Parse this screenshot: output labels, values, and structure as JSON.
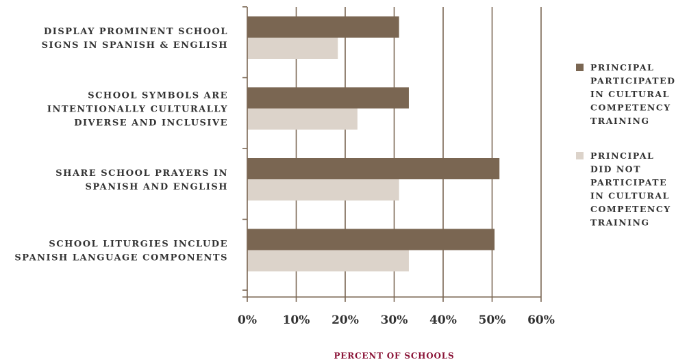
{
  "chart_data": {
    "type": "bar",
    "orientation": "horizontal",
    "categories": [
      [
        "DISPLAY PROMINENT SCHOOL",
        "SIGNS IN SPANISH & ENGLISH"
      ],
      [
        "SCHOOL SYMBOLS ARE",
        "INTENTIONALLY CULTURALLY",
        "DIVERSE AND INCLUSIVE"
      ],
      [
        "SHARE SCHOOL PRAYERS IN",
        "SPANISH AND ENGLISH"
      ],
      [
        "SCHOOL LITURGIES INCLUDE",
        "SPANISH LANGUAGE COMPONENTS"
      ]
    ],
    "series": [
      {
        "name": [
          "PRINCIPAL",
          "PARTICIPATED",
          "IN CULTURAL",
          "COMPETENCY",
          "TRAINING"
        ],
        "color": "#7a6652",
        "values": [
          31,
          33,
          51.5,
          50.5
        ]
      },
      {
        "name": [
          "PRINCIPAL",
          "DID NOT",
          "PARTICIPATE",
          "IN CULTURAL",
          "COMPETENCY",
          "TRAINING"
        ],
        "color": "#dcd3ca",
        "values": [
          18.5,
          22.5,
          31,
          33
        ]
      }
    ],
    "xlabel": "PERCENT OF SCHOOLS",
    "xlim": [
      0,
      60
    ],
    "xticks": [
      0,
      10,
      20,
      30,
      40,
      50,
      60
    ],
    "tick_suffix": "%",
    "grid": true,
    "legend_position": "right",
    "axis_color": "#7a6652",
    "xlabel_color": "#8b1538"
  }
}
